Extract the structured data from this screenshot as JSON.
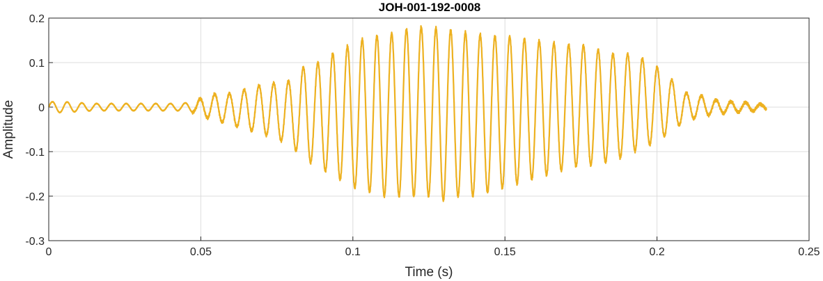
{
  "chart_data": {
    "type": "line",
    "title": "JOH-001-192-0008",
    "xlabel": "Time (s)",
    "ylabel": "Amplitude",
    "xlim": [
      0,
      0.25
    ],
    "ylim": [
      -0.3,
      0.2
    ],
    "xticks": [
      0,
      0.05,
      0.1,
      0.15,
      0.2,
      0.25
    ],
    "xtick_labels": [
      "0",
      "0.05",
      "0.1",
      "0.15",
      "0.2",
      "0.25"
    ],
    "yticks": [
      0.2,
      0.1,
      0,
      -0.1,
      -0.2,
      -0.3
    ],
    "ytick_labels": [
      "0.2",
      "0.1",
      "0",
      "-0.1",
      "-0.2",
      "-0.3"
    ],
    "grid": true,
    "series": [
      {
        "color": "#EDB120",
        "x": [
          0,
          0.0048,
          0.0096,
          0.0144,
          0.0192,
          0.024,
          0.0288,
          0.0336,
          0.0384,
          0.0432,
          0.048,
          0.05,
          0.055,
          0.06,
          0.065,
          0.07,
          0.075,
          0.08,
          0.085,
          0.09,
          0.095,
          0.1,
          0.105,
          0.11,
          0.115,
          0.12,
          0.125,
          0.13,
          0.135,
          0.14,
          0.145,
          0.15,
          0.155,
          0.16,
          0.165,
          0.17,
          0.175,
          0.18,
          0.185,
          0.19,
          0.195,
          0.2,
          0.205,
          0.21,
          0.215,
          0.22,
          0.225,
          0.23,
          0.236
        ],
        "envelope_upper": [
          0.012,
          0.012,
          0.01,
          0.008,
          0.008,
          0.008,
          0.008,
          0.008,
          0.008,
          0.008,
          0.012,
          0.02,
          0.03,
          0.03,
          0.04,
          0.05,
          0.055,
          0.06,
          0.1,
          0.1,
          0.13,
          0.14,
          0.16,
          0.16,
          0.17,
          0.18,
          0.18,
          0.175,
          0.17,
          0.165,
          0.16,
          0.16,
          0.155,
          0.15,
          0.145,
          0.14,
          0.14,
          0.13,
          0.12,
          0.12,
          0.11,
          0.09,
          0.06,
          0.03,
          0.025,
          0.015,
          0.012,
          0.01,
          0.005
        ],
        "envelope_lower": [
          -0.012,
          -0.012,
          -0.01,
          -0.008,
          -0.008,
          -0.008,
          -0.008,
          -0.008,
          -0.008,
          -0.008,
          -0.012,
          -0.02,
          -0.03,
          -0.04,
          -0.05,
          -0.06,
          -0.07,
          -0.09,
          -0.12,
          -0.14,
          -0.16,
          -0.18,
          -0.19,
          -0.2,
          -0.2,
          -0.2,
          -0.2,
          -0.21,
          -0.2,
          -0.2,
          -0.19,
          -0.18,
          -0.17,
          -0.16,
          -0.15,
          -0.14,
          -0.13,
          -0.13,
          -0.12,
          -0.11,
          -0.09,
          -0.08,
          -0.05,
          -0.03,
          -0.02,
          -0.015,
          -0.012,
          -0.01,
          -0.005
        ]
      }
    ]
  }
}
